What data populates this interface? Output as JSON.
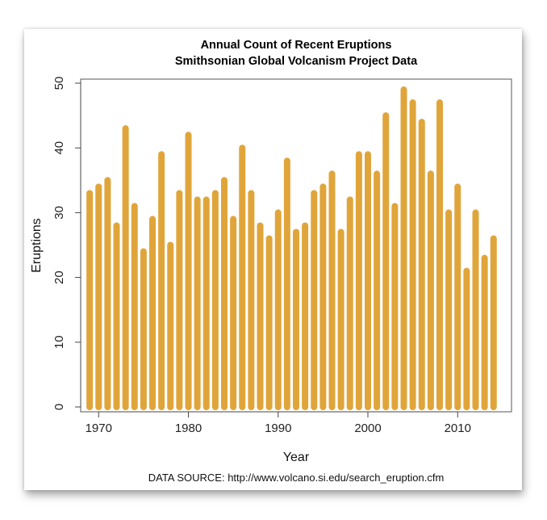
{
  "chart_data": {
    "type": "bar",
    "title": "Annual Count of Recent Eruptions",
    "subtitle": "Smithsonian Global Volcanism Project Data",
    "xlabel": "Year",
    "ylabel": "Eruptions",
    "xlim": [
      1968,
      2016
    ],
    "ylim": [
      0,
      50
    ],
    "x_ticks": [
      1970,
      1980,
      1990,
      2000,
      2010
    ],
    "y_ticks": [
      0,
      10,
      20,
      30,
      40,
      50
    ],
    "bar_color": "#E0A53A",
    "grid": false,
    "source_note": "DATA SOURCE: http://www.volcano.si.edu/search_eruption.cfm",
    "x": [
      1969,
      1970,
      1971,
      1972,
      1973,
      1974,
      1975,
      1976,
      1977,
      1978,
      1979,
      1980,
      1981,
      1982,
      1983,
      1984,
      1985,
      1986,
      1987,
      1988,
      1989,
      1990,
      1991,
      1992,
      1993,
      1994,
      1995,
      1996,
      1997,
      1998,
      1999,
      2000,
      2001,
      2002,
      2003,
      2004,
      2005,
      2006,
      2007,
      2008,
      2009,
      2010,
      2011,
      2012,
      2013,
      2014
    ],
    "values": [
      33,
      34,
      35,
      28,
      43,
      31,
      24,
      29,
      39,
      25,
      33,
      42,
      32,
      32,
      33,
      35,
      29,
      40,
      33,
      28,
      26,
      30,
      38,
      27,
      28,
      33,
      34,
      36,
      27,
      32,
      39,
      39,
      36,
      45,
      31,
      49,
      47,
      44,
      36,
      47,
      30,
      34,
      21,
      30,
      23,
      26
    ]
  }
}
